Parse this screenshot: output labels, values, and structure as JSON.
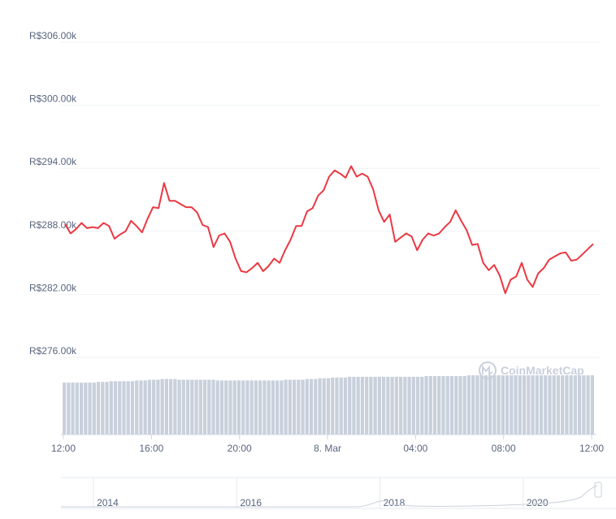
{
  "watermark": "CoinMarketCap",
  "chart_data": {
    "type": "line",
    "title": "",
    "xlabel": "",
    "ylabel": "",
    "y_ticks": [
      "R$306.00k",
      "R$300.00k",
      "R$294.00k",
      "R$288.00k",
      "R$282.00k",
      "R$276.00k"
    ],
    "y_tick_values": [
      306000,
      300000,
      294000,
      288000,
      282000,
      276000
    ],
    "ylim": [
      276000,
      306000
    ],
    "x_ticks": [
      "12:00",
      "16:00",
      "20:00",
      "8. Mar",
      "04:00",
      "08:00",
      "12:00"
    ],
    "x_tick_hours": [
      0,
      4,
      8,
      12,
      16,
      20,
      24
    ],
    "grid": true,
    "series": [
      {
        "color": "#ea3943",
        "hours": [
          0.0,
          0.25,
          0.5,
          0.75,
          1.0,
          1.25,
          1.5,
          1.75,
          2.0,
          2.25,
          2.5,
          2.75,
          3.0,
          3.25,
          3.5,
          3.75,
          4.0,
          4.25,
          4.5,
          4.75,
          5.0,
          5.25,
          5.5,
          5.75,
          6.0,
          6.25,
          6.5,
          6.75,
          7.0,
          7.25,
          7.5,
          7.75,
          8.0,
          8.25,
          8.5,
          8.75,
          9.0,
          9.25,
          9.5,
          9.75,
          10.0,
          10.25,
          10.5,
          10.75,
          11.0,
          11.25,
          11.5,
          11.75,
          12.0,
          12.25,
          12.5,
          12.75,
          13.0,
          13.25,
          13.5,
          13.75,
          14.0,
          14.25,
          14.5,
          14.75,
          15.0,
          15.25,
          15.5,
          15.75,
          16.0,
          16.25,
          16.5,
          16.75,
          17.0,
          17.25,
          17.5,
          17.75,
          18.0,
          18.25,
          18.5,
          18.75,
          19.0,
          19.25,
          19.5,
          19.75,
          20.0,
          20.25,
          20.5,
          20.75,
          21.0,
          21.25,
          21.5,
          21.75,
          22.0,
          22.25,
          22.5,
          22.75,
          23.0,
          23.25,
          23.5,
          23.75,
          24.0
        ],
        "values": [
          288700,
          287800,
          288200,
          288800,
          288300,
          288400,
          288300,
          288800,
          288500,
          287300,
          287700,
          288000,
          289000,
          288500,
          287900,
          289200,
          290300,
          290200,
          292600,
          290900,
          290900,
          290600,
          290300,
          290300,
          289800,
          288600,
          288400,
          286500,
          287600,
          287800,
          287000,
          285400,
          284200,
          284100,
          284500,
          285000,
          284200,
          284700,
          285400,
          285000,
          286200,
          287200,
          288500,
          288500,
          289900,
          290200,
          291400,
          291900,
          293200,
          293800,
          293500,
          293100,
          294200,
          293200,
          293500,
          293200,
          292000,
          290000,
          288900,
          289600,
          287000,
          287400,
          287800,
          287500,
          286200,
          287200,
          287800,
          287600,
          287800,
          288400,
          288900,
          290000,
          289000,
          288100,
          286700,
          286800,
          285000,
          284300,
          284800,
          283800,
          282100,
          283400,
          283700,
          285000,
          283400,
          282700,
          284000,
          284500,
          285300,
          285600,
          285900,
          286000,
          285200,
          285300,
          285800,
          286300,
          286800
        ]
      }
    ],
    "volume": {
      "color": "#c9d0dc",
      "relative_heights": [
        0.71,
        0.71,
        0.71,
        0.71,
        0.71,
        0.71,
        0.71,
        0.71,
        0.72,
        0.72,
        0.72,
        0.73,
        0.73,
        0.73,
        0.73,
        0.73,
        0.73,
        0.74,
        0.74,
        0.74,
        0.75,
        0.75,
        0.75,
        0.76,
        0.76,
        0.76,
        0.76,
        0.75,
        0.75,
        0.75,
        0.75,
        0.75,
        0.75,
        0.75,
        0.75,
        0.75,
        0.74,
        0.74,
        0.74,
        0.74,
        0.74,
        0.74,
        0.74,
        0.74,
        0.74,
        0.74,
        0.74,
        0.74,
        0.74,
        0.74,
        0.74,
        0.74,
        0.75,
        0.75,
        0.75,
        0.75,
        0.75,
        0.76,
        0.76,
        0.76,
        0.77,
        0.77,
        0.77,
        0.78,
        0.78,
        0.78,
        0.78,
        0.79,
        0.79,
        0.79,
        0.79,
        0.79,
        0.79,
        0.79,
        0.79,
        0.79,
        0.79,
        0.79,
        0.79,
        0.79,
        0.79,
        0.79,
        0.79,
        0.79,
        0.79,
        0.8,
        0.8,
        0.8,
        0.8,
        0.8,
        0.8,
        0.8,
        0.8,
        0.8,
        0.8,
        0.81,
        0.81,
        0.81,
        0.81,
        0.81,
        0.81,
        0.81,
        0.81,
        0.81,
        0.81,
        0.81,
        0.81,
        0.81,
        0.81,
        0.81,
        0.81,
        0.81,
        0.81,
        0.81,
        0.81,
        0.81,
        0.81,
        0.81,
        0.81,
        0.81,
        0.81,
        0.81,
        0.81,
        0.81,
        0.81
      ]
    },
    "navigator": {
      "labels": [
        "2014",
        "2016",
        "2018",
        "2020"
      ],
      "label_years": [
        2014,
        2016,
        2018,
        2020
      ],
      "year_range": [
        2013.5,
        2021.25
      ]
    }
  }
}
